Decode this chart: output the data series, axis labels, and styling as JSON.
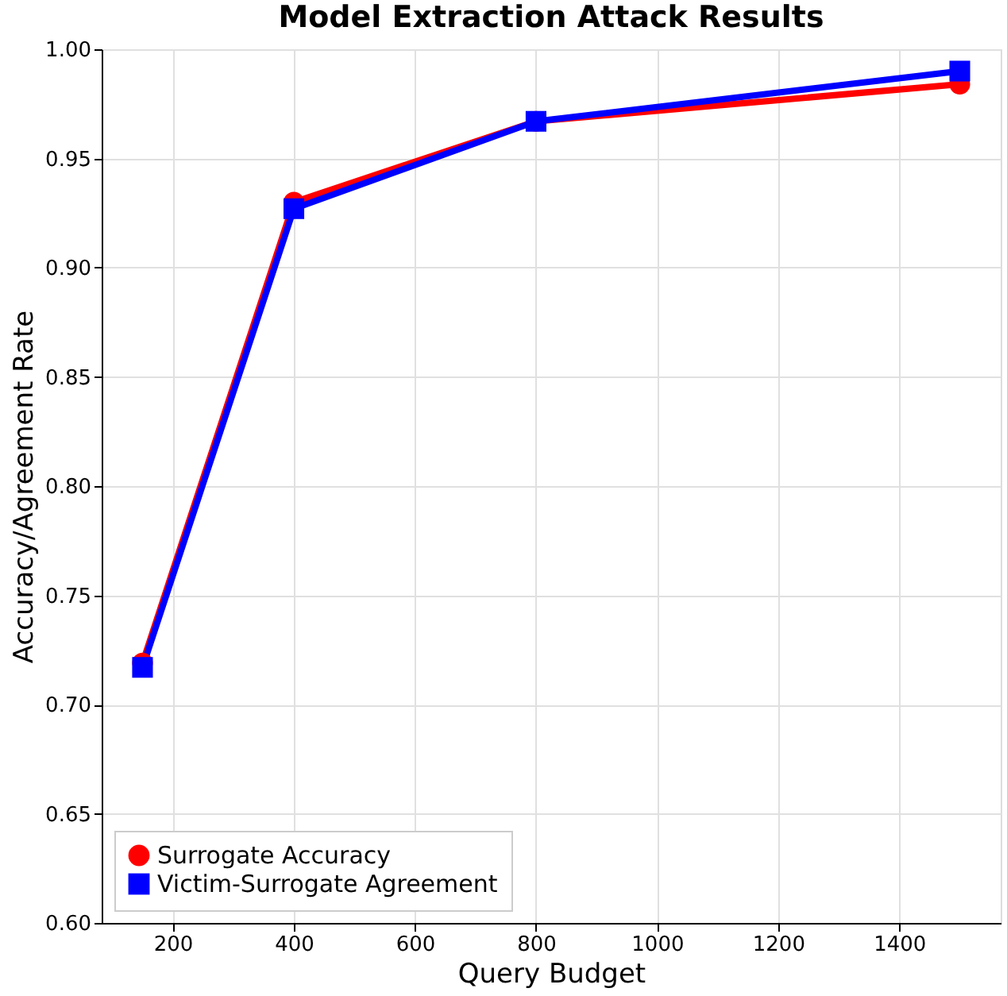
{
  "chart_data": {
    "type": "line",
    "title": "Model Extraction Attack Results",
    "xlabel": "Query Budget",
    "ylabel": "Accuracy/Agreement Rate",
    "x": [
      150,
      400,
      800,
      1500
    ],
    "series": [
      {
        "name": "Surrogate Accuracy",
        "color": "#ff0000",
        "marker": "circle",
        "values": [
          0.719,
          0.93,
          0.967,
          0.984
        ]
      },
      {
        "name": "Victim-Surrogate Agreement",
        "color": "#0000ff",
        "marker": "square",
        "values": [
          0.717,
          0.927,
          0.967,
          0.99
        ]
      }
    ],
    "xlim": [
      82.5,
      1567.5
    ],
    "xticks": [
      200,
      400,
      600,
      800,
      1000,
      1200,
      1400
    ],
    "ylim": [
      0.6,
      1.0
    ],
    "yticks": [
      {
        "value": 0.6,
        "label": "0.60"
      },
      0.65,
      {
        "value": 0.7,
        "label": "0.70"
      },
      0.75,
      {
        "value": 0.8,
        "label": "0.80"
      },
      0.85,
      {
        "value": 0.9,
        "label": "0.90"
      },
      0.95,
      {
        "value": 1.0,
        "label": "1.00"
      }
    ],
    "grid": true,
    "legend": "bottom left",
    "line_style": "solid"
  }
}
